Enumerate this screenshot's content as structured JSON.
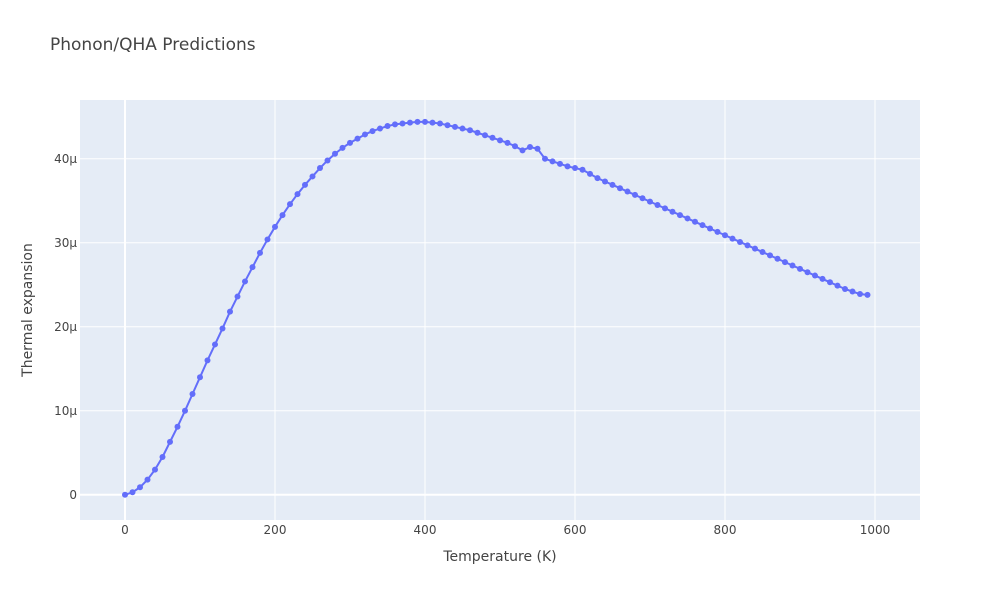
{
  "chart_data": {
    "type": "line",
    "title": "Phonon/QHA Predictions",
    "xlabel": "Temperature (K)",
    "ylabel": "Thermal expansion",
    "xlim": [
      -60,
      1060
    ],
    "ylim": [
      -3,
      47
    ],
    "x_ticks": [
      0,
      200,
      400,
      600,
      800,
      1000
    ],
    "x_tick_labels": [
      "0",
      "200",
      "400",
      "600",
      "800",
      "1000"
    ],
    "y_ticks": [
      0,
      10,
      20,
      30,
      40
    ],
    "y_tick_labels": [
      "0",
      "10μ",
      "20μ",
      "30μ",
      "40μ"
    ],
    "grid": true,
    "colors": {
      "plot_bg": "#e5ecf6",
      "series": "#636efa",
      "grid": "#ffffff"
    },
    "series": [
      {
        "mode": "lines+markers",
        "x": [
          0,
          10,
          20,
          30,
          40,
          50,
          60,
          70,
          80,
          90,
          100,
          110,
          120,
          130,
          140,
          150,
          160,
          170,
          180,
          190,
          200,
          210,
          220,
          230,
          240,
          250,
          260,
          270,
          280,
          290,
          300,
          310,
          320,
          330,
          340,
          350,
          360,
          370,
          380,
          390,
          400,
          410,
          420,
          430,
          440,
          450,
          460,
          470,
          480,
          490,
          500,
          510,
          520,
          530,
          540,
          550,
          560,
          570,
          580,
          590,
          600,
          610,
          620,
          630,
          640,
          650,
          660,
          670,
          680,
          690,
          700,
          710,
          720,
          730,
          740,
          750,
          760,
          770,
          780,
          790,
          800,
          810,
          820,
          830,
          840,
          850,
          860,
          870,
          880,
          890,
          900,
          910,
          920,
          930,
          940,
          950,
          960,
          970,
          980,
          990
        ],
        "y": [
          0,
          0.3,
          0.9,
          1.8,
          3.0,
          4.5,
          6.3,
          8.1,
          10.0,
          12.0,
          14.0,
          16.0,
          17.9,
          19.8,
          21.8,
          23.6,
          25.4,
          27.1,
          28.8,
          30.4,
          31.9,
          33.3,
          34.6,
          35.8,
          36.9,
          37.9,
          38.9,
          39.8,
          40.6,
          41.3,
          41.9,
          42.4,
          42.9,
          43.3,
          43.6,
          43.9,
          44.1,
          44.2,
          44.3,
          44.4,
          44.4,
          44.3,
          44.2,
          44.0,
          43.8,
          43.6,
          43.4,
          43.1,
          42.8,
          42.5,
          42.2,
          41.9,
          41.5,
          41.0,
          41.4,
          41.2,
          40.0,
          39.7,
          39.4,
          39.1,
          38.9,
          38.7,
          38.2,
          37.7,
          37.3,
          36.9,
          36.5,
          36.1,
          35.7,
          35.3,
          34.9,
          34.5,
          34.1,
          33.7,
          33.3,
          32.9,
          32.5,
          32.1,
          31.7,
          31.3,
          30.9,
          30.5,
          30.1,
          29.7,
          29.3,
          28.9,
          28.5,
          28.1,
          27.7,
          27.3,
          26.9,
          26.5,
          26.1,
          25.7,
          25.3,
          24.9,
          24.5,
          24.2,
          23.9,
          23.8
        ]
      }
    ]
  }
}
